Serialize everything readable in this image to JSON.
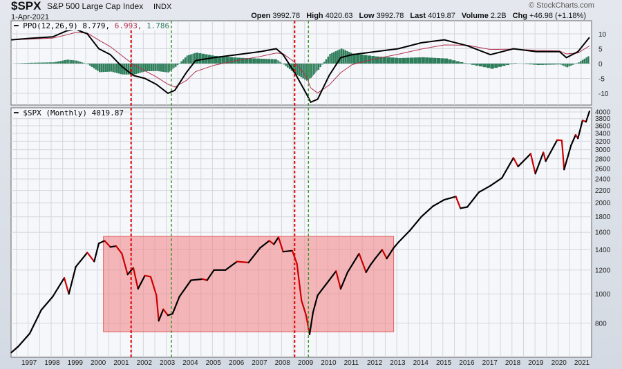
{
  "header": {
    "symbol": "$SPX",
    "name": "S&P 500 Large Cap Index",
    "exchange": "INDX",
    "date": "1-Apr-2021",
    "watermark": "© StockCharts.com",
    "stats": [
      {
        "k": "Open",
        "v": "3992.78"
      },
      {
        "k": "High",
        "v": "4020.63"
      },
      {
        "k": "Low",
        "v": "3992.78"
      },
      {
        "k": "Last",
        "v": "4019.87"
      },
      {
        "k": "Volume",
        "v": "2.2B"
      },
      {
        "k": "Chg",
        "v": "+46.98 (+1.18%)"
      }
    ]
  },
  "chart_data": [
    {
      "type": "line",
      "title": "PPO(12,26,9)",
      "values_label": [
        "8.779",
        "6.993",
        "1.786"
      ],
      "ylim": [
        -14,
        14
      ],
      "yticks": [
        10,
        5,
        0,
        -5,
        -10
      ],
      "colors": {
        "ppo": "#000000",
        "signal": "#b0304a",
        "hist": "#2e7d5b"
      },
      "x": [
        1996.2,
        1997,
        1998,
        1998.6,
        1999,
        1999.5,
        2000,
        2000.5,
        2001,
        2001.5,
        2002,
        2002.5,
        2003,
        2003.3,
        2003.8,
        2004.2,
        2005,
        2006,
        2007,
        2007.7,
        2008,
        2008.5,
        2009,
        2009.2,
        2009.5,
        2010,
        2010.5,
        2011,
        2012,
        2013,
        2014,
        2015,
        2016,
        2017,
        2018,
        2019,
        2020,
        2020.3,
        2020.8,
        2021.3
      ],
      "ppo": [
        8,
        8.5,
        9,
        11,
        11.5,
        10,
        5,
        3,
        -1,
        -4,
        -5,
        -7,
        -10,
        -9,
        -3,
        1,
        2,
        3,
        4,
        5,
        3,
        -3,
        -10,
        -13,
        -12,
        -4,
        2,
        3,
        4,
        5,
        7,
        8,
        6,
        3,
        5,
        4,
        4,
        2,
        4,
        8.8
      ]
    },
    {
      "type": "line",
      "title": "$SPX (Monthly)",
      "last": "4019.87",
      "scale": "log",
      "ylim": [
        620,
        4150
      ],
      "yticks": [
        4000,
        3800,
        3600,
        3400,
        3200,
        3000,
        2800,
        2600,
        2400,
        2200,
        2000,
        1800,
        1600,
        1400,
        1200,
        1000,
        800
      ],
      "xticks": [
        1997,
        1998,
        1999,
        2000,
        2001,
        2002,
        2003,
        2004,
        2005,
        2006,
        2007,
        2008,
        2009,
        2010,
        2011,
        2012,
        2013,
        2014,
        2015,
        2016,
        2017,
        2018,
        2019,
        2020,
        2021
      ],
      "x": [
        1996.2,
        1996.5,
        1997,
        1997.5,
        1998,
        1998.5,
        1998.7,
        1999,
        1999.5,
        1999.8,
        2000,
        2000.25,
        2000.5,
        2000.75,
        2001,
        2001.25,
        2001.5,
        2001.7,
        2002,
        2002.25,
        2002.5,
        2002.6,
        2002.8,
        2003,
        2003.2,
        2003.5,
        2004,
        2004.5,
        2004.7,
        2005,
        2005.5,
        2006,
        2006.5,
        2007,
        2007.4,
        2007.6,
        2007.8,
        2008,
        2008.4,
        2008.6,
        2008.8,
        2009,
        2009.15,
        2009.3,
        2009.5,
        2010,
        2010.3,
        2010.5,
        2010.8,
        2011.3,
        2011.6,
        2011.8,
        2012,
        2012.3,
        2012.5,
        2012.8,
        2013,
        2013.5,
        2014,
        2014.5,
        2015,
        2015.5,
        2015.7,
        2016,
        2016.5,
        2017,
        2017.5,
        2018,
        2018.2,
        2018.75,
        2018.95,
        2019.3,
        2019.4,
        2019.9,
        2020.1,
        2020.2,
        2020.5,
        2020.7,
        2020.8,
        2021,
        2021.15,
        2021.3
      ],
      "y": [
        640,
        670,
        740,
        885,
        980,
        1130,
        1000,
        1230,
        1370,
        1280,
        1470,
        1500,
        1430,
        1440,
        1360,
        1160,
        1220,
        1040,
        1150,
        1140,
        990,
        815,
        890,
        850,
        860,
        980,
        1110,
        1120,
        1110,
        1200,
        1200,
        1280,
        1270,
        1420,
        1500,
        1460,
        1540,
        1380,
        1390,
        1260,
        950,
        850,
        735,
        870,
        990,
        1110,
        1190,
        1040,
        1180,
        1360,
        1180,
        1250,
        1310,
        1400,
        1310,
        1420,
        1480,
        1620,
        1800,
        1950,
        2050,
        2100,
        1920,
        1940,
        2170,
        2280,
        2420,
        2820,
        2640,
        2910,
        2500,
        2940,
        2750,
        3230,
        3220,
        2580,
        3100,
        3360,
        3270,
        3750,
        3710,
        4020
      ],
      "up_color": "#000000",
      "down_color": "#cc0000",
      "annotations": {
        "box": {
          "x": [
            2000.2,
            2012.8
          ],
          "y": [
            750,
            1550
          ],
          "color": "#f08080"
        },
        "red_lines": [
          2001.4,
          2008.5
        ],
        "green_lines": [
          2003.15,
          2009.1
        ]
      }
    }
  ]
}
